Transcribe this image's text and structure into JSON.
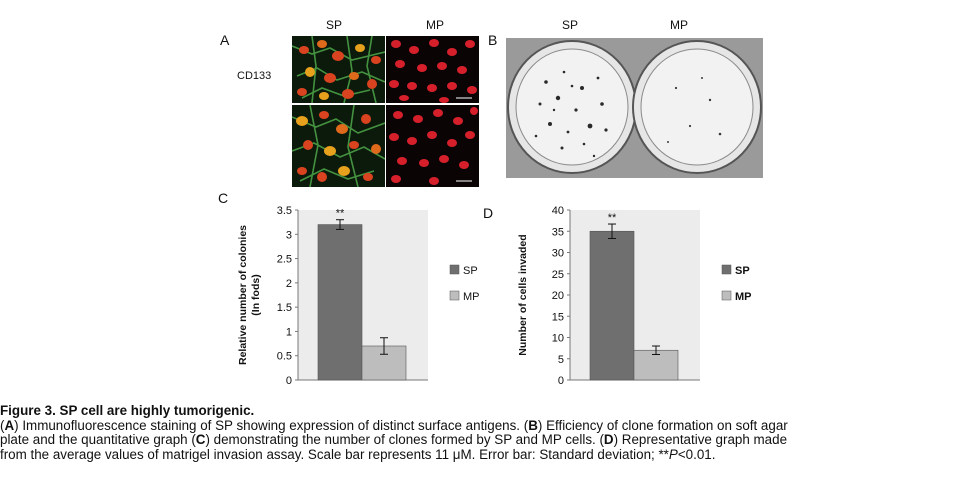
{
  "panel_a": {
    "letter": "A",
    "col_labels": [
      "SP",
      "MP"
    ],
    "row_label": "CD133"
  },
  "panel_b": {
    "letter": "B",
    "col_labels": [
      "SP",
      "MP"
    ]
  },
  "chart_data": [
    {
      "letter": "C",
      "type": "bar",
      "categories": [
        "SP",
        "MP"
      ],
      "values": [
        3.2,
        0.7
      ],
      "errors": [
        0.1,
        0.17
      ],
      "annotations": [
        "**",
        ""
      ],
      "ylabel_lines": [
        "Relative number of colonies",
        "(In fods)"
      ],
      "ylim": [
        0,
        3.5
      ],
      "yticks": [
        "0",
        "0.5",
        "1",
        "1.5",
        "2",
        "2.5",
        "3",
        "3.5"
      ],
      "colors": [
        "#6f6f6f",
        "#bdbdbd"
      ],
      "legend": [
        "SP",
        "MP"
      ],
      "legend_bold": false
    },
    {
      "letter": "D",
      "type": "bar",
      "categories": [
        "SP",
        "MP"
      ],
      "values": [
        35,
        7
      ],
      "errors": [
        1.7,
        1.0
      ],
      "annotations": [
        "**",
        ""
      ],
      "ylabel_lines": [
        "Number of cells invaded"
      ],
      "ylim": [
        0,
        40
      ],
      "yticks": [
        "0",
        "5",
        "10",
        "15",
        "20",
        "25",
        "30",
        "35",
        "40"
      ],
      "colors": [
        "#6f6f6f",
        "#bdbdbd"
      ],
      "legend": [
        "SP",
        "MP"
      ],
      "legend_bold": true
    }
  ],
  "caption": {
    "title": "Figure 3. SP cell are highly tumorigenic.",
    "line1_parts": [
      "(",
      "A",
      ") Immunofluorescence staining of SP showing expression of distinct surface antigens. (",
      "B",
      ") Efficiency of clone formation on soft agar"
    ],
    "line2_parts": [
      "plate and the quantitative graph (",
      "C",
      ") demonstrating the number of clones formed by SP and MP cells. (",
      "D",
      ") Representative graph made"
    ],
    "line3": "from the average values of matrigel invasion assay. Scale bar represents 11 μM. Error bar: Standard deviation; **",
    "line3_italic": "P",
    "line3_end": "<0.01."
  }
}
